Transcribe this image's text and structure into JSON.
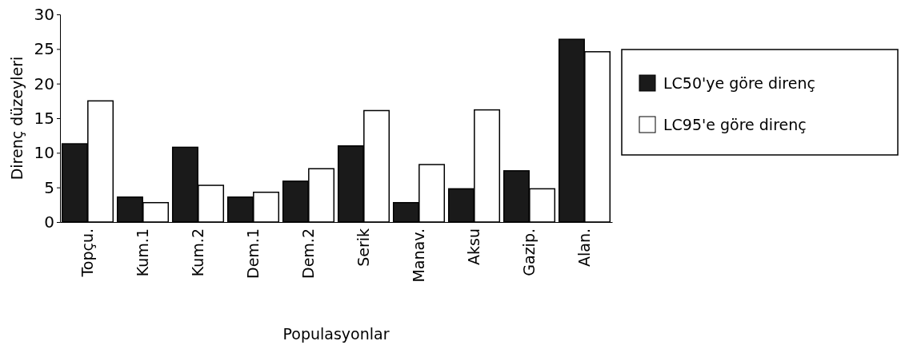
{
  "chart_data": {
    "type": "bar",
    "xlabel": "Populasyonlar",
    "ylabel": "Direnç düzeyleri",
    "categories": [
      "Topçu.",
      "Kum.1",
      "Kum.2",
      "Dem.1",
      "Dem.2",
      "Serik",
      "Manav.",
      "Aksu",
      "Gazip.",
      "Alan."
    ],
    "series": [
      {
        "name": "LC50'ye göre direnç",
        "color": "#1a1a1a",
        "values": [
          11.3,
          3.6,
          10.8,
          3.6,
          5.9,
          11,
          2.8,
          4.8,
          7.4,
          26.4
        ]
      },
      {
        "name": "LC95'e göre direnç",
        "color": "#ffffff",
        "values": [
          17.5,
          2.8,
          5.3,
          4.3,
          7.7,
          16.1,
          8.3,
          16.2,
          4.8,
          24.6
        ]
      }
    ],
    "ylim": [
      0,
      30
    ],
    "yticks": [
      0,
      5,
      10,
      15,
      20,
      25,
      30
    ],
    "legend": "right"
  }
}
